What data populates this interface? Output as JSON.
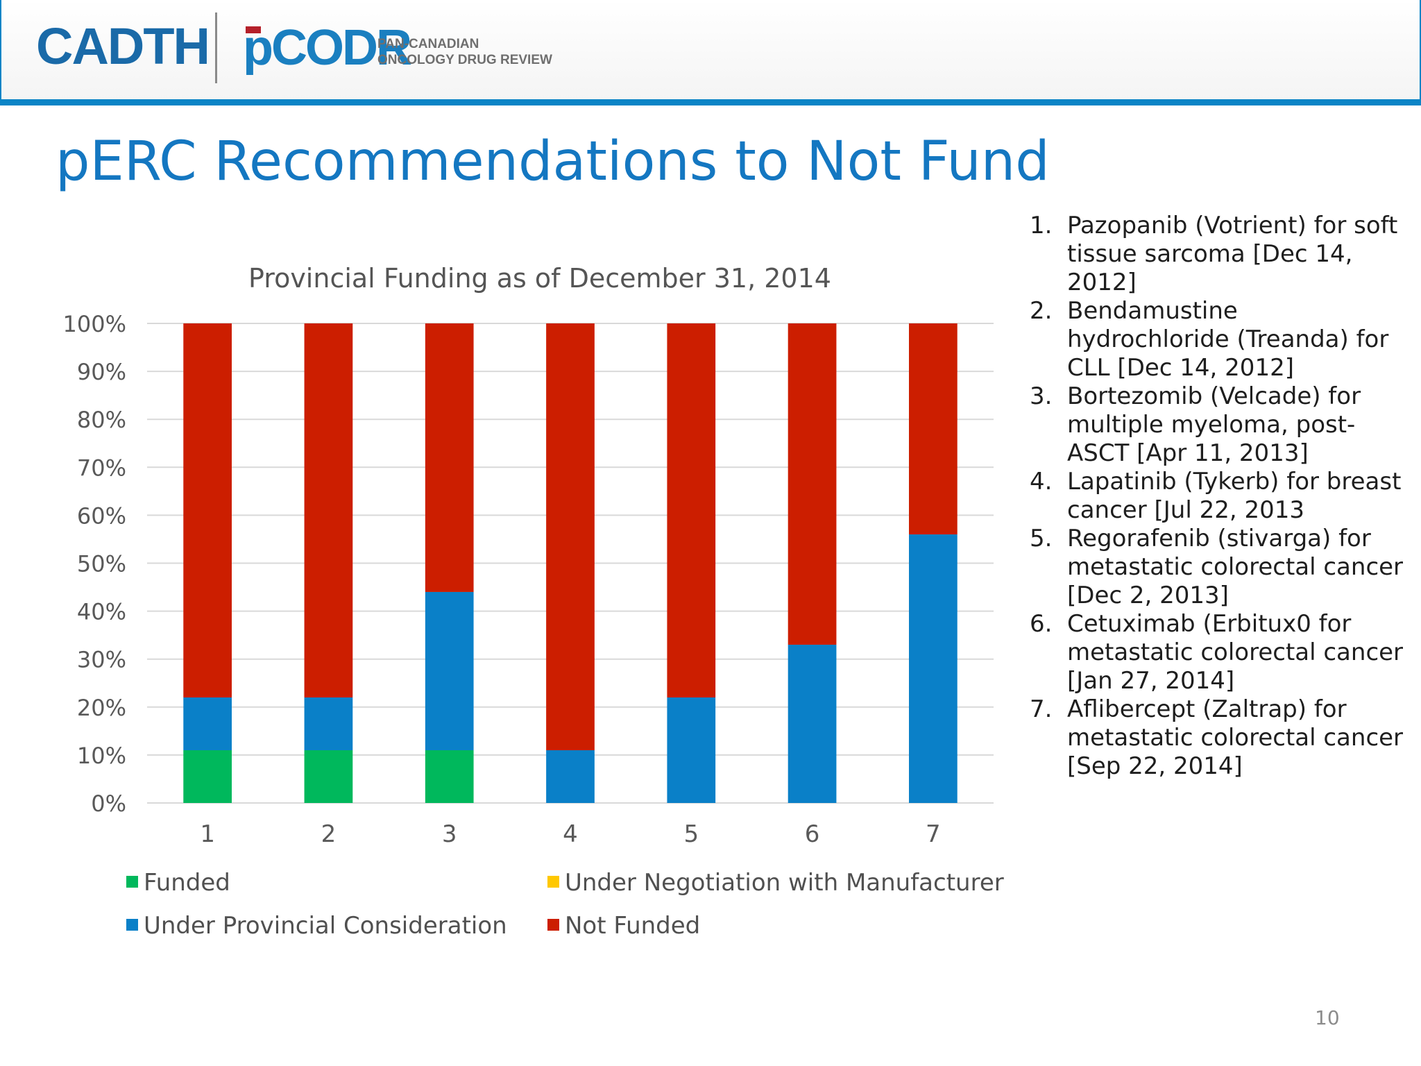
{
  "header": {
    "logo_cadth": "CADTH",
    "logo_pcodr": "pCODR",
    "logo_sub_line1": "PAN-CANADIAN",
    "logo_sub_line2": "ONCOLOGY DRUG REVIEW"
  },
  "slide": {
    "title": "pERC Recommendations to Not Fund",
    "page_number": "10"
  },
  "colors": {
    "funded": "#00b85c",
    "under_negotiation": "#ffc800",
    "under_provincial": "#0a80c8",
    "not_funded": "#cc1e00",
    "title_blue": "#1477c1"
  },
  "chart_data": {
    "type": "bar",
    "stacked": true,
    "title": "Provincial Funding as of December 31, 2014",
    "categories": [
      "1",
      "2",
      "3",
      "4",
      "5",
      "6",
      "7"
    ],
    "ylim": [
      0,
      100
    ],
    "yticks": [
      "0%",
      "10%",
      "20%",
      "30%",
      "40%",
      "50%",
      "60%",
      "70%",
      "80%",
      "90%",
      "100%"
    ],
    "grid": true,
    "legend_position": "bottom",
    "series": [
      {
        "name": "Funded",
        "color": "#00b85c",
        "values": [
          11,
          11,
          11,
          0,
          0,
          0,
          0
        ]
      },
      {
        "name": "Under Negotiation with Manufacturer",
        "color": "#ffc800",
        "values": [
          0,
          0,
          0,
          0,
          0,
          0,
          0
        ]
      },
      {
        "name": "Under Provincial Consideration",
        "color": "#0a80c8",
        "values": [
          11,
          11,
          33,
          11,
          22,
          33,
          56
        ]
      },
      {
        "name": "Not Funded",
        "color": "#cc1e00",
        "values": [
          78,
          78,
          56,
          89,
          78,
          67,
          44
        ]
      }
    ]
  },
  "notes": [
    {
      "num": "1.",
      "text": "Pazopanib (Votrient) for soft tissue sarcoma [Dec 14, 2012]"
    },
    {
      "num": "2.",
      "text": "Bendamustine hydrochloride (Treanda) for CLL [Dec 14, 2012]"
    },
    {
      "num": "3.",
      "text": "Bortezomib (Velcade) for multiple myeloma, post-ASCT [Apr 11, 2013]"
    },
    {
      "num": "4.",
      "text": "Lapatinib (Tykerb) for breast cancer [Jul 22, 2013"
    },
    {
      "num": "5.",
      "text": "Regorafenib (stivarga) for metastatic colorectal cancer [Dec 2, 2013]"
    },
    {
      "num": "6.",
      "text": "Cetuximab (Erbitux0 for metastatic colorectal cancer [Jan 27, 2014]"
    },
    {
      "num": "7.",
      "text": "Aflibercept (Zaltrap) for metastatic colorectal cancer [Sep 22, 2014]"
    }
  ]
}
